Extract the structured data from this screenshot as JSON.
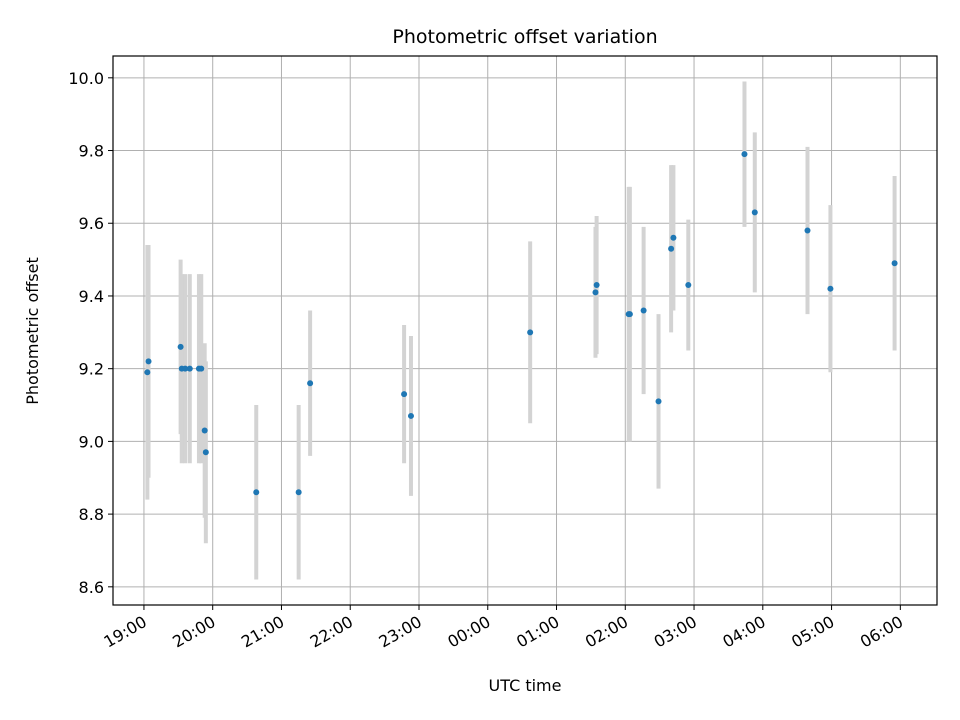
{
  "chart_data": {
    "type": "scatter",
    "title": "Photometric offset variation",
    "xlabel": "UTC time",
    "ylabel": "Photometric offset",
    "grid": true,
    "colors": {
      "points": "#1f77b4",
      "errorbars": "#d3d3d3",
      "grid": "#b0b0b0"
    },
    "x_tick_labels": [
      "19:00",
      "20:00",
      "21:00",
      "22:00",
      "23:00",
      "00:00",
      "01:00",
      "02:00",
      "03:00",
      "04:00",
      "05:00",
      "06:00"
    ],
    "xlim": [
      "18:33",
      "06:32"
    ],
    "y_ticks": [
      8.6,
      8.8,
      9.0,
      9.2,
      9.4,
      9.6,
      9.8,
      10.0
    ],
    "y_tick_labels": [
      "8.6",
      "8.8",
      "9.0",
      "9.2",
      "9.4",
      "9.6",
      "9.8",
      "10.0"
    ],
    "ylim": [
      8.55,
      10.06
    ],
    "points": [
      {
        "x": "19:03",
        "y": 9.19,
        "err": 0.35
      },
      {
        "x": "19:04",
        "y": 9.22,
        "err": 0.32
      },
      {
        "x": "19:32",
        "y": 9.26,
        "err": 0.24
      },
      {
        "x": "19:33",
        "y": 9.2,
        "err": 0.26
      },
      {
        "x": "19:36",
        "y": 9.2,
        "err": 0.26
      },
      {
        "x": "19:40",
        "y": 9.2,
        "err": 0.26
      },
      {
        "x": "19:48",
        "y": 9.2,
        "err": 0.26
      },
      {
        "x": "19:50",
        "y": 9.2,
        "err": 0.26
      },
      {
        "x": "19:53",
        "y": 9.03,
        "err": 0.24
      },
      {
        "x": "19:54",
        "y": 8.97,
        "err": 0.25
      },
      {
        "x": "20:38",
        "y": 8.86,
        "err": 0.24
      },
      {
        "x": "21:15",
        "y": 8.86,
        "err": 0.24
      },
      {
        "x": "21:25",
        "y": 9.16,
        "err": 0.2
      },
      {
        "x": "22:47",
        "y": 9.13,
        "err": 0.19
      },
      {
        "x": "22:53",
        "y": 9.07,
        "err": 0.22
      },
      {
        "x": "00:37",
        "y": 9.3,
        "err": 0.25
      },
      {
        "x": "01:34",
        "y": 9.41,
        "err": 0.18
      },
      {
        "x": "01:35",
        "y": 9.43,
        "err": 0.19
      },
      {
        "x": "02:03",
        "y": 9.35,
        "err": 0.35
      },
      {
        "x": "02:04",
        "y": 9.35,
        "err": 0.35
      },
      {
        "x": "02:16",
        "y": 9.36,
        "err": 0.23
      },
      {
        "x": "02:29",
        "y": 9.11,
        "err": 0.24
      },
      {
        "x": "02:40",
        "y": 9.53,
        "err": 0.23
      },
      {
        "x": "02:42",
        "y": 9.56,
        "err": 0.2
      },
      {
        "x": "02:55",
        "y": 9.43,
        "err": 0.18
      },
      {
        "x": "03:44",
        "y": 9.79,
        "err": 0.2
      },
      {
        "x": "03:53",
        "y": 9.63,
        "err": 0.22
      },
      {
        "x": "04:39",
        "y": 9.58,
        "err": 0.23
      },
      {
        "x": "04:59",
        "y": 9.42,
        "err": 0.23
      },
      {
        "x": "05:55",
        "y": 9.49,
        "err": 0.24
      }
    ]
  }
}
